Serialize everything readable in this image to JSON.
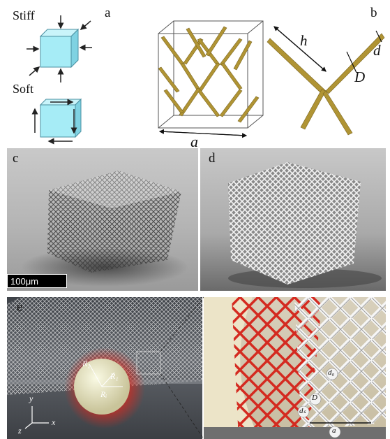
{
  "panel_a": {
    "label": "a",
    "stiff": "Stiff",
    "soft": "Soft"
  },
  "panel_b": {
    "label": "b",
    "dim_a": "a",
    "dim_h": "h",
    "dim_d": "d",
    "dim_D": "D"
  },
  "panel_c": {
    "label": "c",
    "scale": "100μm"
  },
  "panel_d": {
    "label": "d"
  },
  "panel_e": {
    "label": "e",
    "r2": "R₂",
    "r1": "R₁",
    "ri": "Rᵢ",
    "axis_y": "y",
    "axis_z": "z",
    "axis_x": "x",
    "d0": "d₀",
    "D": "D",
    "ds": "dₛ",
    "a": "a"
  },
  "colors": {
    "cube": "#a6ecf6",
    "strut": "#b09434",
    "red": "#d42a20"
  }
}
